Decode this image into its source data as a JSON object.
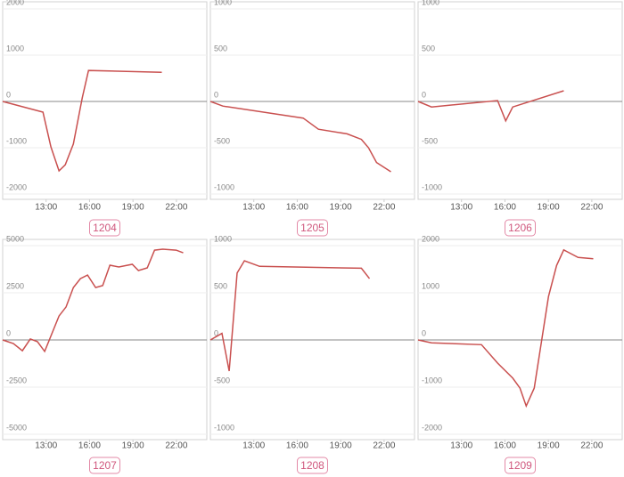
{
  "chart_data": [
    {
      "type": "line",
      "title": "1204",
      "x": [
        10,
        12.78,
        13.33,
        13.89,
        14.32,
        14.88,
        15.5,
        15.93,
        20.99
      ],
      "series": [
        {
          "color": "#c9504f",
          "values": [
            0,
            -230,
            -980,
            -1500,
            -1370,
            -920,
            80,
            670,
            630
          ]
        }
      ],
      "xlim": [
        10,
        24.1
      ],
      "ylim": [
        -2000,
        2000
      ],
      "xticks": [
        {
          "value": 13,
          "label": "13:00"
        },
        {
          "value": 16,
          "label": "16:00"
        },
        {
          "value": 19,
          "label": "19:00"
        },
        {
          "value": 22,
          "label": "22:00"
        }
      ],
      "yticks": [
        -2000,
        -1000,
        0,
        1000,
        2000
      ],
      "grid": true
    },
    {
      "type": "line",
      "title": "1205",
      "x": [
        10,
        10.86,
        16.41,
        17.46,
        19.44,
        20.43,
        20.92,
        21.48,
        22.47
      ],
      "series": [
        {
          "color": "#c9504f",
          "values": [
            0,
            -50,
            -180,
            -300,
            -350,
            -410,
            -500,
            -660,
            -760
          ]
        }
      ],
      "xlim": [
        10,
        24.1
      ],
      "ylim": [
        -1000,
        1000
      ],
      "xticks": [
        {
          "value": 13,
          "label": "13:00"
        },
        {
          "value": 16,
          "label": "16:00"
        },
        {
          "value": 19,
          "label": "19:00"
        },
        {
          "value": 22,
          "label": "22:00"
        }
      ],
      "yticks": [
        -1000,
        -500,
        0,
        500,
        1000
      ],
      "grid": true
    },
    {
      "type": "line",
      "title": "1206",
      "x": [
        10,
        10.93,
        15.49,
        16.05,
        16.54,
        20.06
      ],
      "series": [
        {
          "color": "#c9504f",
          "values": [
            0,
            -60,
            10,
            -210,
            -60,
            115
          ]
        }
      ],
      "xlim": [
        10,
        24.1
      ],
      "ylim": [
        -1000,
        1000
      ],
      "xticks": [
        {
          "value": 13,
          "label": "13:00"
        },
        {
          "value": 16,
          "label": "16:00"
        },
        {
          "value": 19,
          "label": "19:00"
        },
        {
          "value": 22,
          "label": "22:00"
        }
      ],
      "yticks": [
        -1000,
        -500,
        0,
        500,
        1000
      ],
      "grid": true
    },
    {
      "type": "line",
      "title": "1207",
      "x": [
        10,
        10.74,
        11.36,
        11.91,
        12.4,
        12.9,
        13.89,
        14.38,
        14.88,
        15.37,
        15.86,
        16.42,
        16.91,
        17.41,
        18.02,
        18.95,
        19.38,
        19.99,
        20.49,
        21.05,
        21.98,
        22.47
      ],
      "series": [
        {
          "color": "#c9504f",
          "values": [
            0,
            -190,
            -570,
            50,
            -90,
            -610,
            1270,
            1750,
            2780,
            3250,
            3440,
            2780,
            2880,
            3960,
            3870,
            4010,
            3680,
            3820,
            4760,
            4810,
            4760,
            4620
          ]
        }
      ],
      "xlim": [
        10,
        24.1
      ],
      "ylim": [
        -5000,
        5000
      ],
      "xticks": [
        {
          "value": 13,
          "label": "13:00"
        },
        {
          "value": 16,
          "label": "16:00"
        },
        {
          "value": 19,
          "label": "19:00"
        },
        {
          "value": 22,
          "label": "22:00"
        }
      ],
      "yticks": [
        -5000,
        -2500,
        0,
        2500,
        5000
      ],
      "grid": true
    },
    {
      "type": "line",
      "title": "1208",
      "x": [
        10,
        10.8,
        11.3,
        11.85,
        12.35,
        13.4,
        20.43,
        20.99
      ],
      "series": [
        {
          "color": "#c9504f",
          "values": [
            0,
            70,
            -330,
            710,
            840,
            780,
            760,
            650
          ]
        }
      ],
      "xlim": [
        10,
        24.1
      ],
      "ylim": [
        -1000,
        1000
      ],
      "xticks": [
        {
          "value": 13,
          "label": "13:00"
        },
        {
          "value": 16,
          "label": "16:00"
        },
        {
          "value": 19,
          "label": "19:00"
        },
        {
          "value": 22,
          "label": "22:00"
        }
      ],
      "yticks": [
        -1000,
        -500,
        0,
        500,
        1000
      ],
      "grid": true
    },
    {
      "type": "line",
      "title": "1209",
      "x": [
        10,
        10.93,
        14.38,
        15.49,
        16.54,
        17.04,
        17.47,
        18.02,
        19.01,
        19.57,
        20.06,
        21.05,
        22.1
      ],
      "series": [
        {
          "color": "#c9504f",
          "values": [
            0,
            -60,
            -100,
            -490,
            -810,
            -1020,
            -1400,
            -1020,
            920,
            1580,
            1910,
            1750,
            1720
          ]
        }
      ],
      "xlim": [
        10,
        24.1
      ],
      "ylim": [
        -2000,
        2000
      ],
      "xticks": [
        {
          "value": 13,
          "label": "13:00"
        },
        {
          "value": 16,
          "label": "16:00"
        },
        {
          "value": 19,
          "label": "19:00"
        },
        {
          "value": 22,
          "label": "22:00"
        }
      ],
      "yticks": [
        -2000,
        -1000,
        0,
        1000,
        2000
      ],
      "grid": true
    }
  ]
}
